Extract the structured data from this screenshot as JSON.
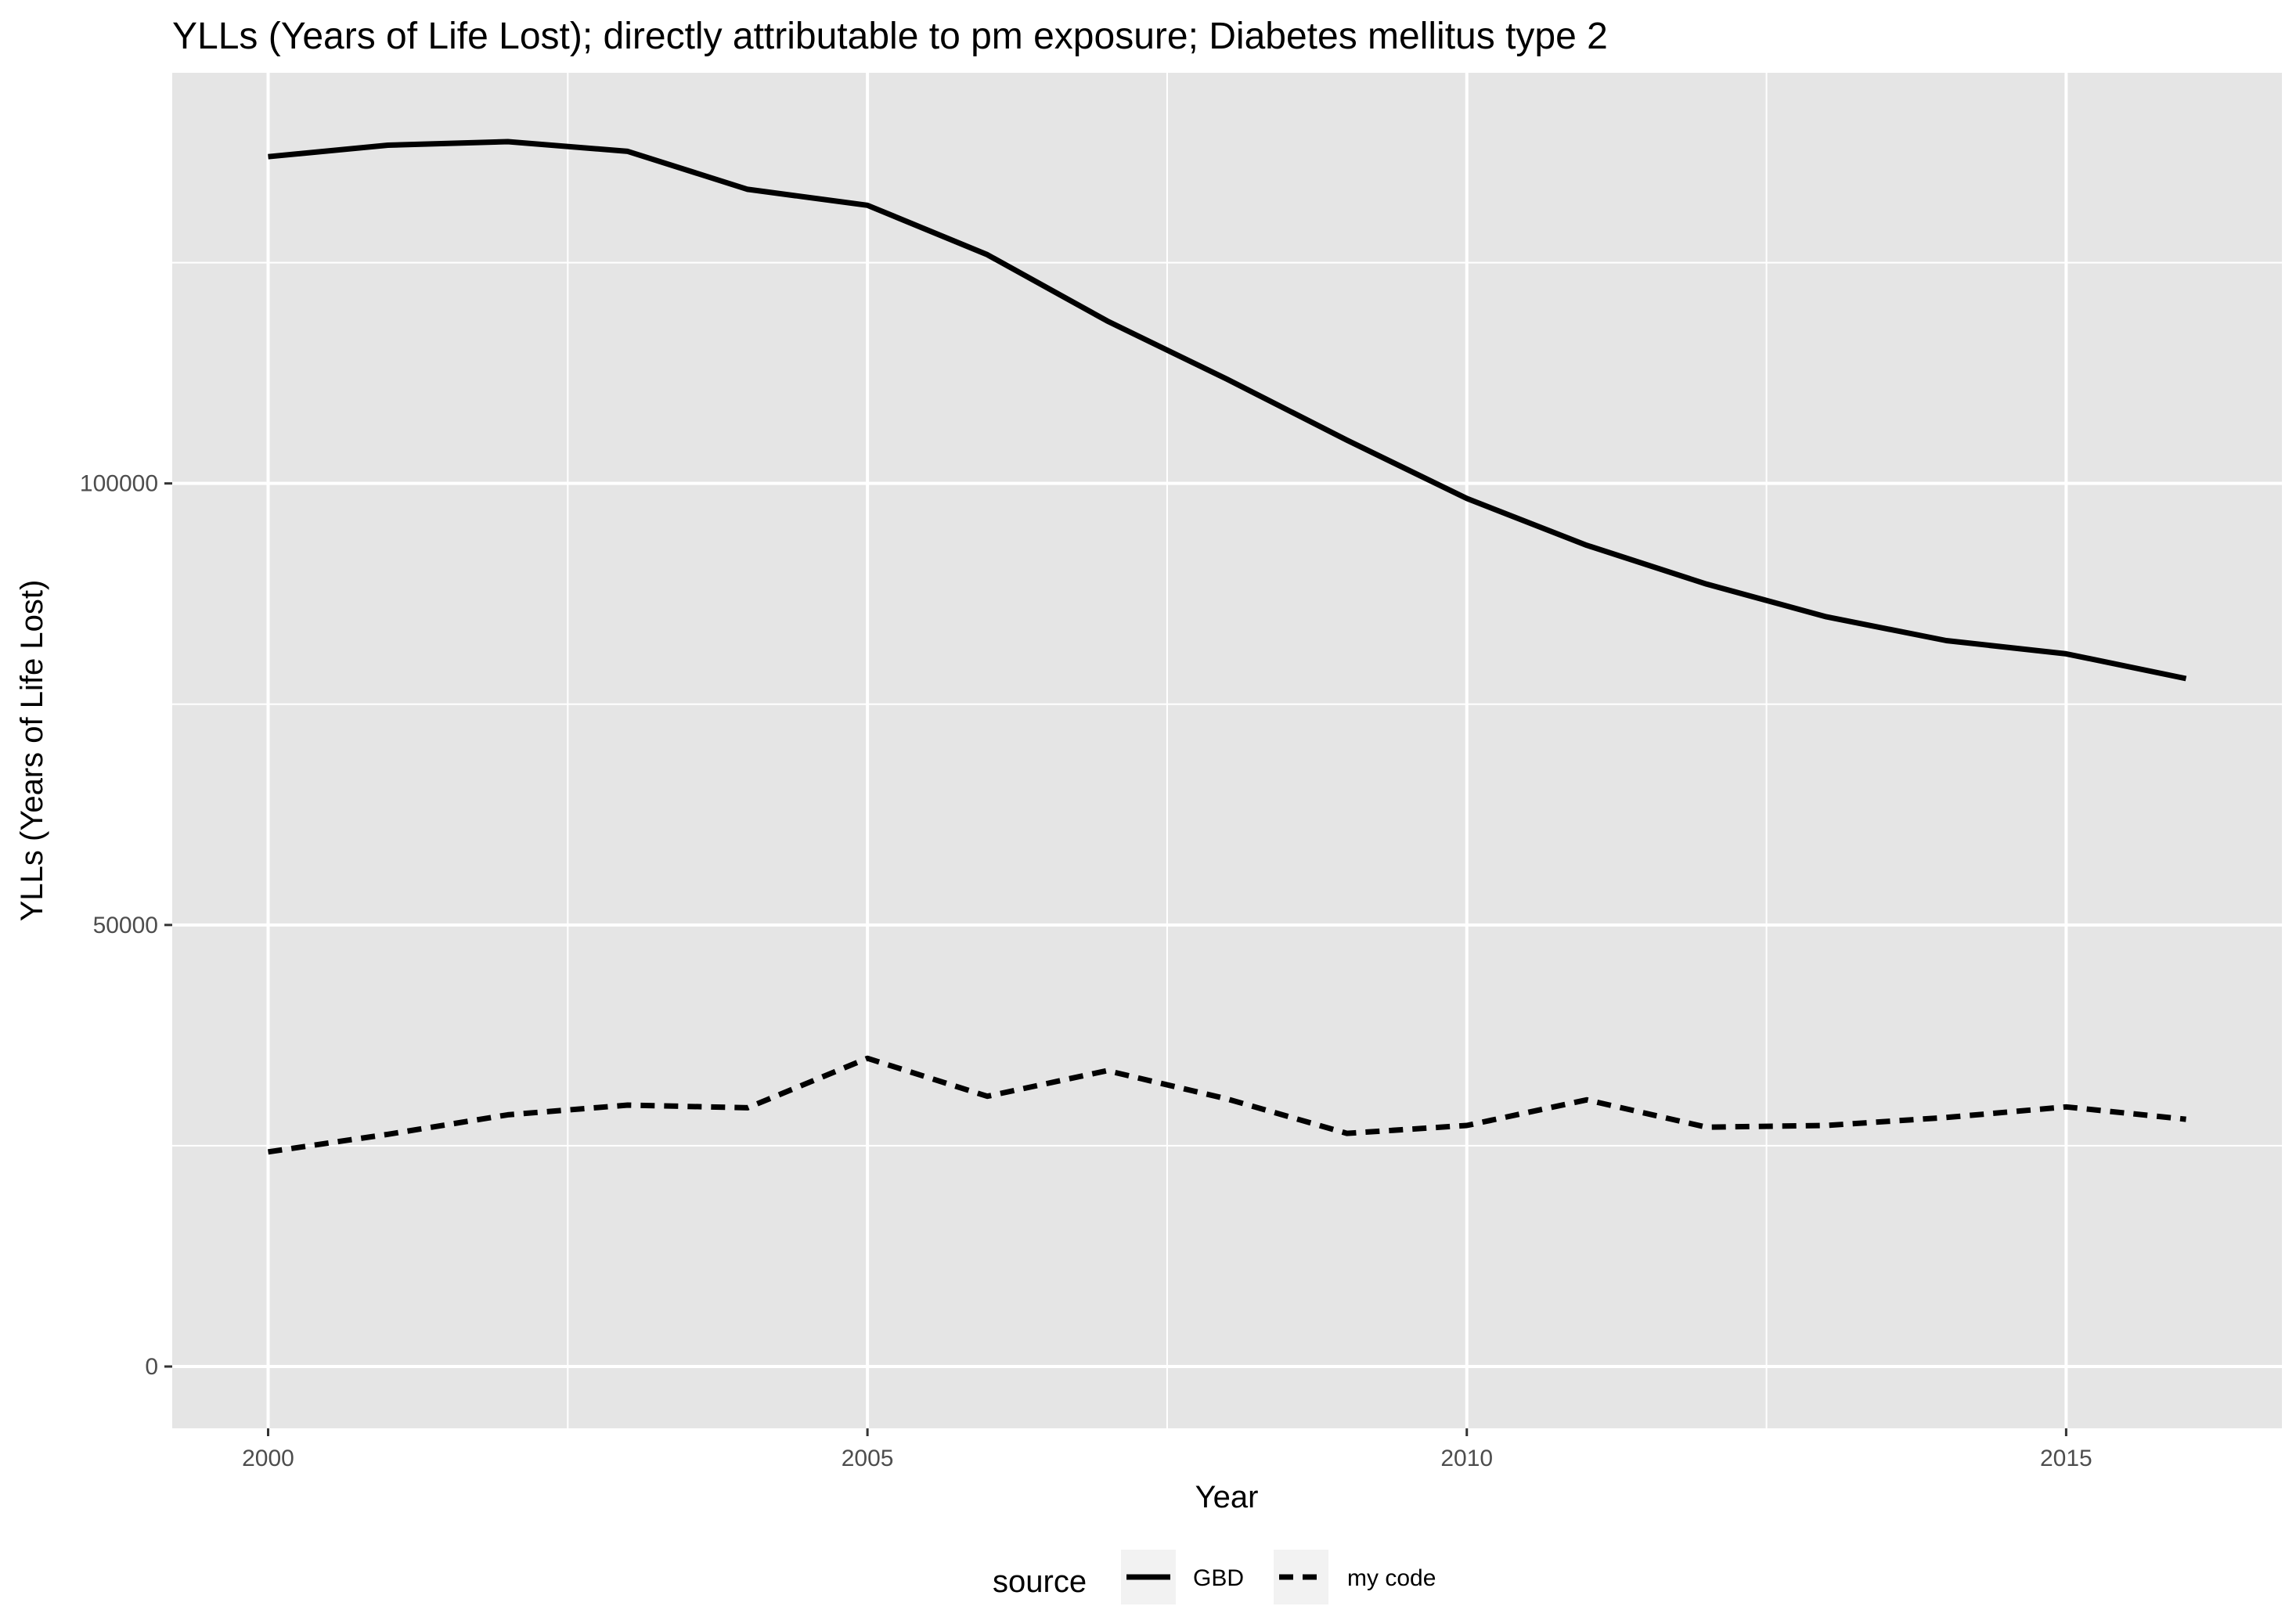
{
  "chart_data": {
    "type": "line",
    "title": "YLLs (Years of Life Lost); directly attributable to pm exposure; Diabetes mellitus type 2",
    "xlabel": "Year",
    "ylabel": "YLLs (Years of Life Lost)",
    "x": [
      2000,
      2001,
      2002,
      2003,
      2004,
      2005,
      2006,
      2007,
      2008,
      2009,
      2010,
      2011,
      2012,
      2013,
      2014,
      2015,
      2016
    ],
    "series": [
      {
        "name": "GBD",
        "linetype": "solid",
        "values": [
          137000,
          138300,
          138700,
          137600,
          133300,
          131500,
          125900,
          118400,
          111800,
          104900,
          98300,
          93000,
          88600,
          84900,
          82200,
          80700,
          77900
        ]
      },
      {
        "name": "my code",
        "linetype": "dashed",
        "values": [
          24300,
          26300,
          28500,
          29600,
          29300,
          34900,
          30600,
          33500,
          30300,
          26400,
          27300,
          30200,
          27100,
          27300,
          28200,
          29400,
          28000
        ]
      }
    ],
    "xlim": [
      1999.2,
      2016.8
    ],
    "ylim": [
      -7000,
      146500
    ],
    "x_ticks": [
      2000,
      2005,
      2010,
      2015
    ],
    "x_tick_labels": [
      "2000",
      "2005",
      "2010",
      "2015"
    ],
    "y_ticks": [
      0,
      50000,
      100000
    ],
    "y_tick_labels": [
      "0",
      "50000",
      "100000"
    ],
    "grid": true,
    "legend": {
      "title": "source",
      "position": "bottom"
    },
    "colors": {
      "panel": "#e5e5e5",
      "grid": "#ffffff",
      "line": "#000000",
      "tick_text": "#4d4d4d",
      "legend_key": "#f2f2f2"
    }
  }
}
